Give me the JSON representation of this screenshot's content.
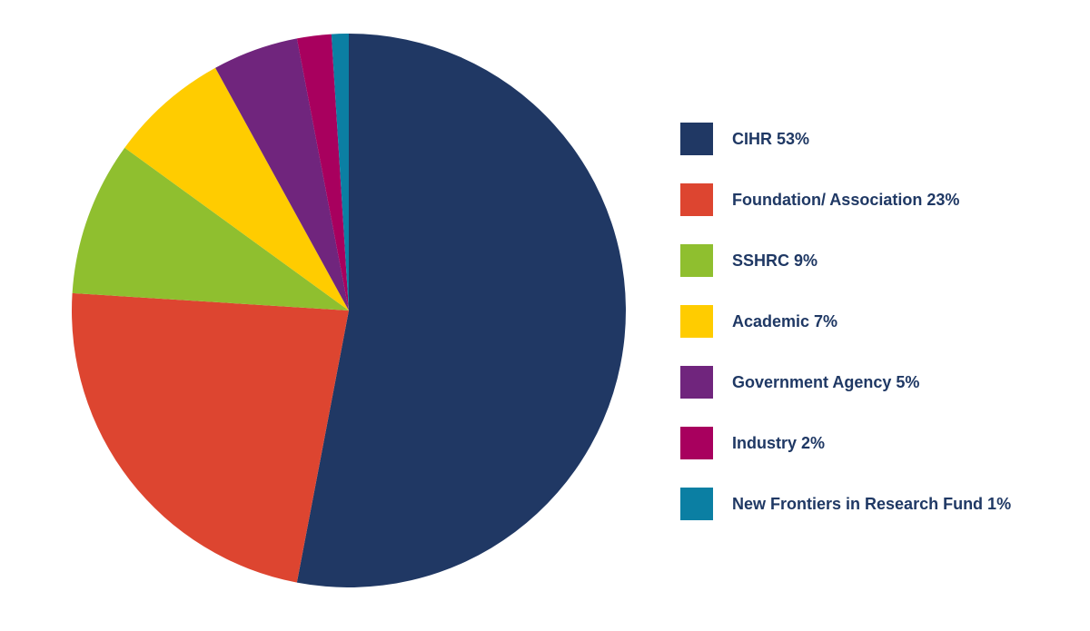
{
  "chart_data": {
    "type": "pie",
    "title": "",
    "legend_position": "right",
    "slices": [
      {
        "label": "CIHR",
        "value": 53,
        "color": "#203864"
      },
      {
        "label": "Foundation/ Association",
        "value": 23,
        "color": "#dd4530"
      },
      {
        "label": "SSHRC",
        "value": 9,
        "color": "#8fbf2f"
      },
      {
        "label": "Academic",
        "value": 7,
        "color": "#ffcc00"
      },
      {
        "label": "Government Agency",
        "value": 5,
        "color": "#70257d"
      },
      {
        "label": "Industry",
        "value": 2,
        "color": "#a8005e"
      },
      {
        "label": "New Frontiers in Research Fund",
        "value": 1,
        "color": "#0b7fa3"
      }
    ],
    "legend_labels": [
      "CIHR 53%",
      "Foundation/ Association 23%",
      "SSHRC 9%",
      "Academic 7%",
      "Government Agency 5%",
      "Industry 2%",
      "New Frontiers in Research Fund 1%"
    ]
  }
}
